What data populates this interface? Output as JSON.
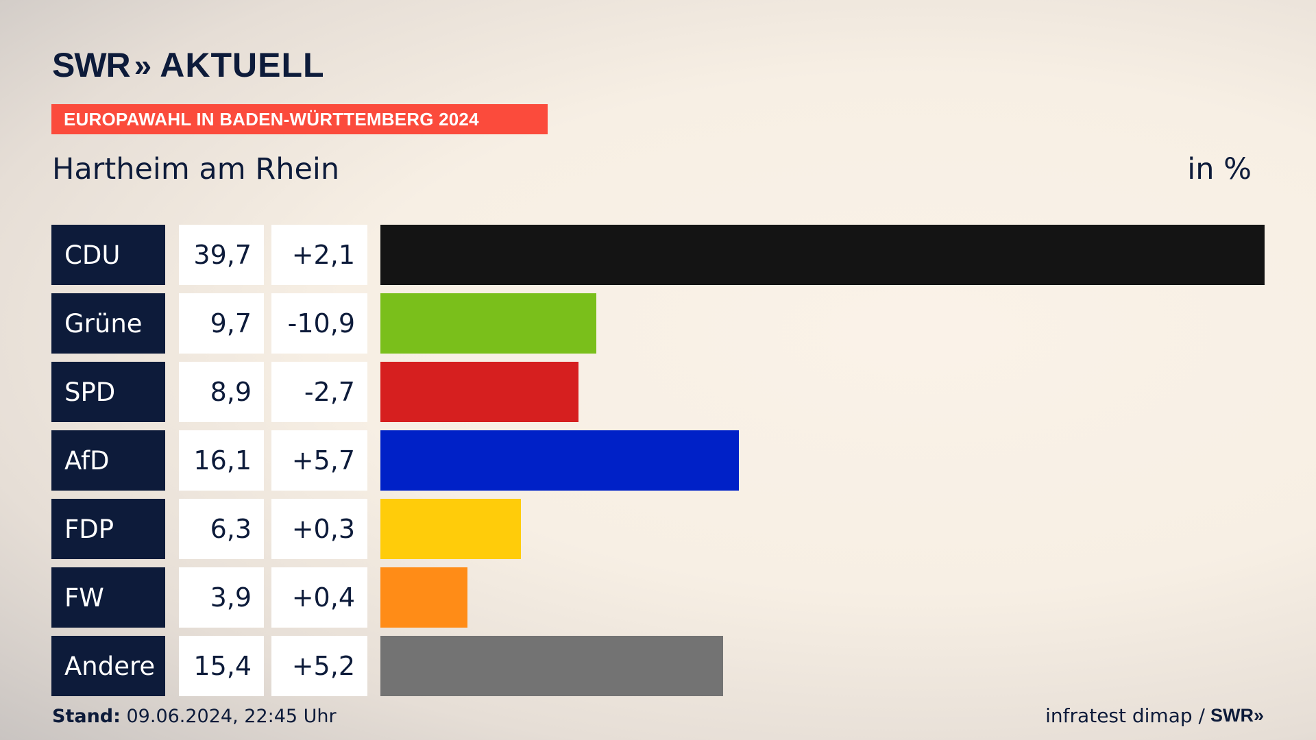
{
  "header": {
    "logo_swr": "SWR",
    "logo_chevrons": "»",
    "logo_aktuell": "AKTUELL",
    "banner": "EUROPAWAHL IN BADEN-WÜRTTEMBERG 2024",
    "title": "Hartheim am Rhein",
    "unit": "in %"
  },
  "colors": {
    "banner": "#fb4b3c",
    "party_box": "#0d1b3a"
  },
  "chart_data": {
    "type": "bar",
    "title": "Hartheim am Rhein",
    "categories": [
      "CDU",
      "Grüne",
      "SPD",
      "AfD",
      "FDP",
      "FW",
      "Andere"
    ],
    "values": [
      39.7,
      9.7,
      8.9,
      16.1,
      6.3,
      3.9,
      15.4
    ],
    "value_labels": [
      "39,7",
      "9,7",
      "8,9",
      "16,1",
      "6,3",
      "3,9",
      "15,4"
    ],
    "diff_labels": [
      "+2,1",
      "-10,9",
      "-2,7",
      "+5,7",
      "+0,3",
      "+0,4",
      "+5,2"
    ],
    "diffs": [
      2.1,
      -10.9,
      -2.7,
      5.7,
      0.3,
      0.4,
      5.2
    ],
    "colors": [
      "#141414",
      "#7abf1b",
      "#d61f1f",
      "#0021c7",
      "#ffcc0a",
      "#ff8c17",
      "#737373"
    ],
    "xlim": [
      0,
      39.7
    ],
    "orientation": "horizontal",
    "legend": "none",
    "grid": false
  },
  "footer": {
    "stand_label": "Stand:",
    "stand_value": " 09.06.2024, 22:45 Uhr",
    "source": "infratest dimap /",
    "source_logo": "SWR»"
  }
}
